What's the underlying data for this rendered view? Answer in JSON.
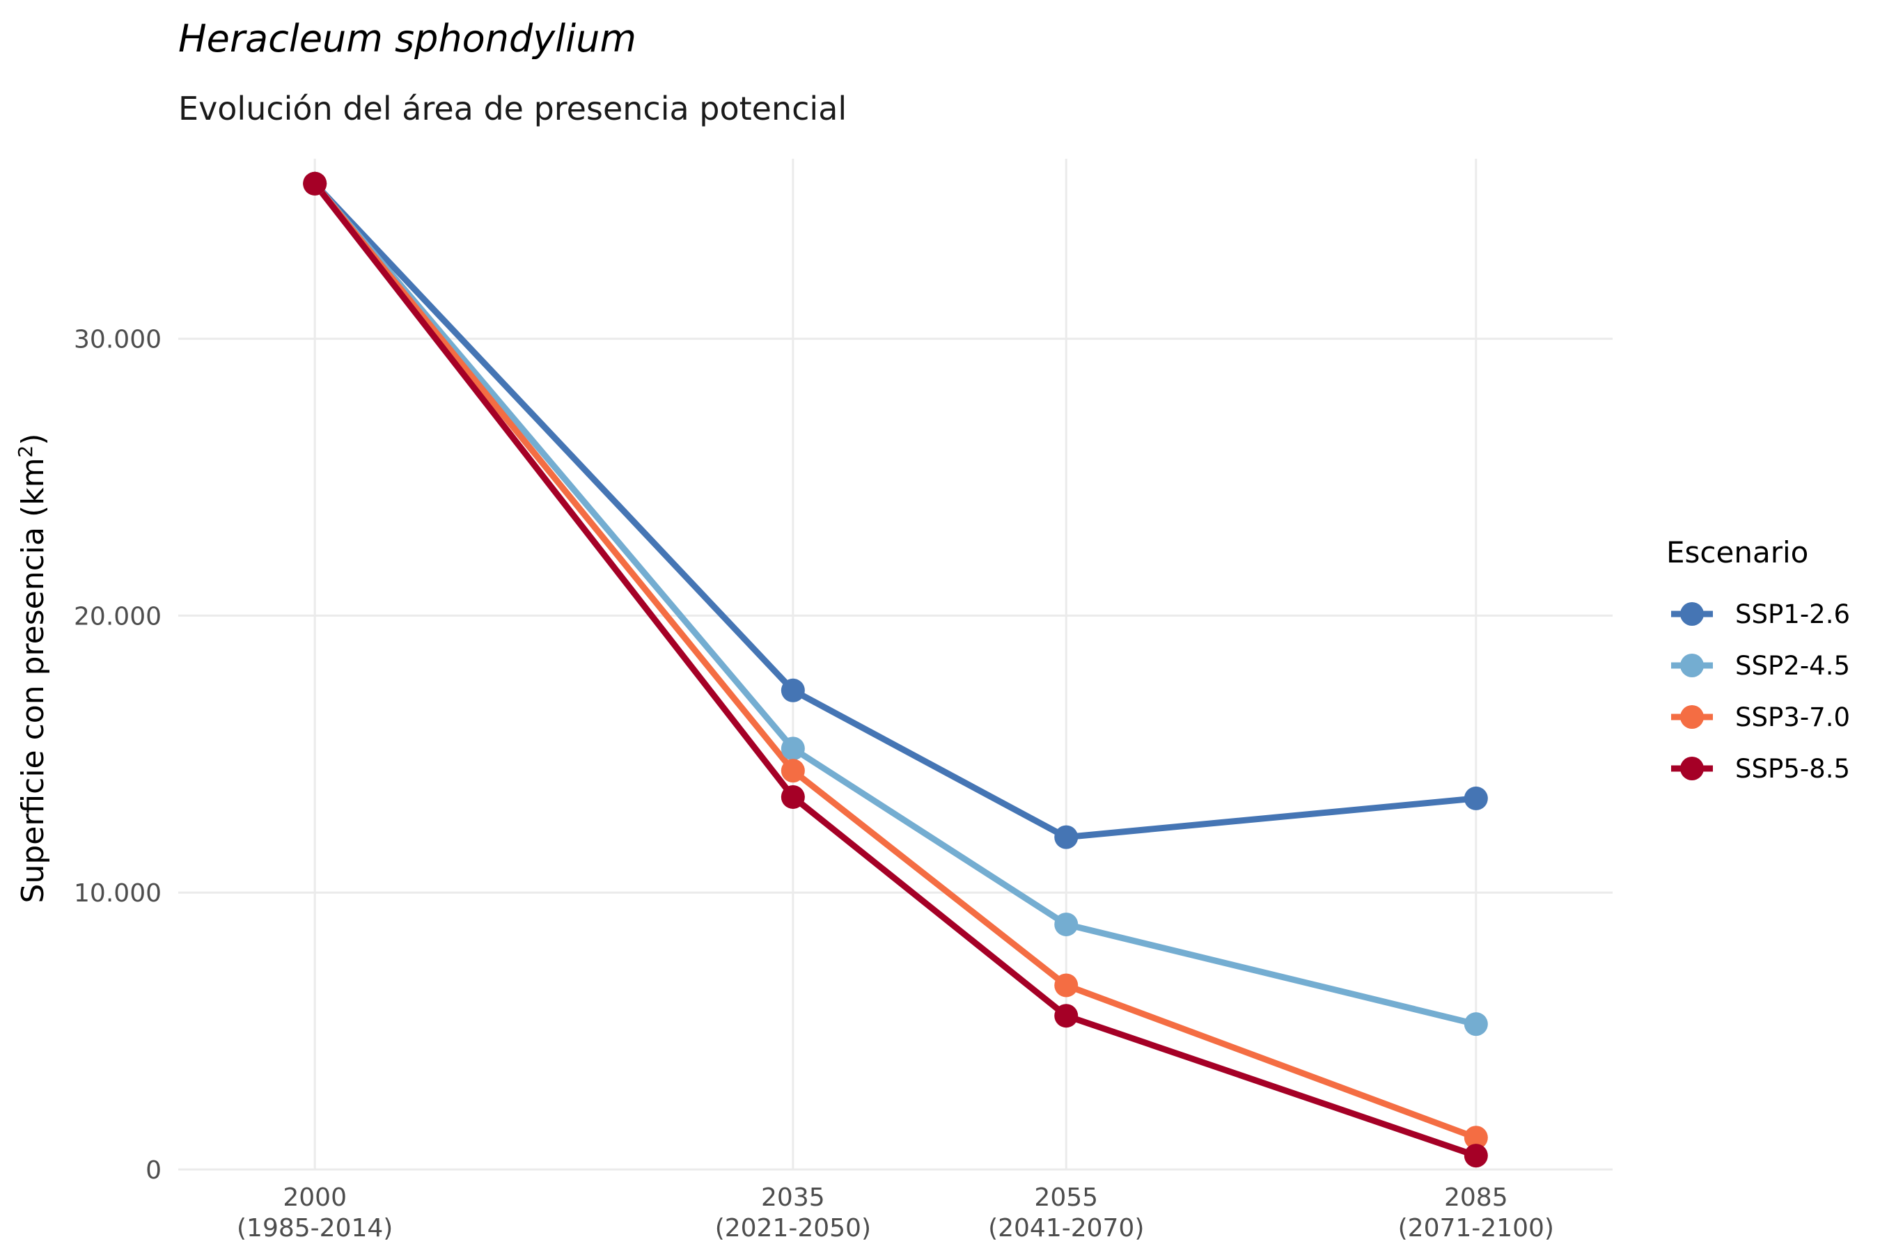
{
  "chart_data": {
    "type": "line",
    "title": "Heracleum sphondylium",
    "subtitle": "Evolución del área de presencia potencial",
    "ylabel_main": "Superficie con presencia (km",
    "ylabel_sup": "2",
    "ylabel_close": ")",
    "xlabel": "",
    "x": [
      2000,
      2035,
      2055,
      2085
    ],
    "x_tick_labels": [
      [
        "2000",
        "(1985-2014)"
      ],
      [
        "2035",
        "(2021-2050)"
      ],
      [
        "2055",
        "(2041-2070)"
      ],
      [
        "2085",
        "(2071-2100)"
      ]
    ],
    "xlim": [
      1990,
      2095
    ],
    "ylim": [
      0,
      36500
    ],
    "y_ticks": [
      0,
      10000,
      20000,
      30000
    ],
    "y_tick_labels": [
      "0",
      "10.000",
      "20.000",
      "30.000"
    ],
    "grid": true,
    "legend": {
      "title": "Escenario",
      "position": "right"
    },
    "series": [
      {
        "name": "SSP1-2.6",
        "color": "#4575B4",
        "values": [
          35600,
          17300,
          12000,
          13400
        ]
      },
      {
        "name": "SSP2-4.5",
        "color": "#74ADD1",
        "values": [
          35600,
          15200,
          8850,
          5250
        ]
      },
      {
        "name": "SSP3-7.0",
        "color": "#F46D43",
        "values": [
          35600,
          14400,
          6650,
          1150
        ]
      },
      {
        "name": "SSP5-8.5",
        "color": "#A50026",
        "values": [
          35600,
          13450,
          5550,
          500
        ]
      }
    ]
  }
}
